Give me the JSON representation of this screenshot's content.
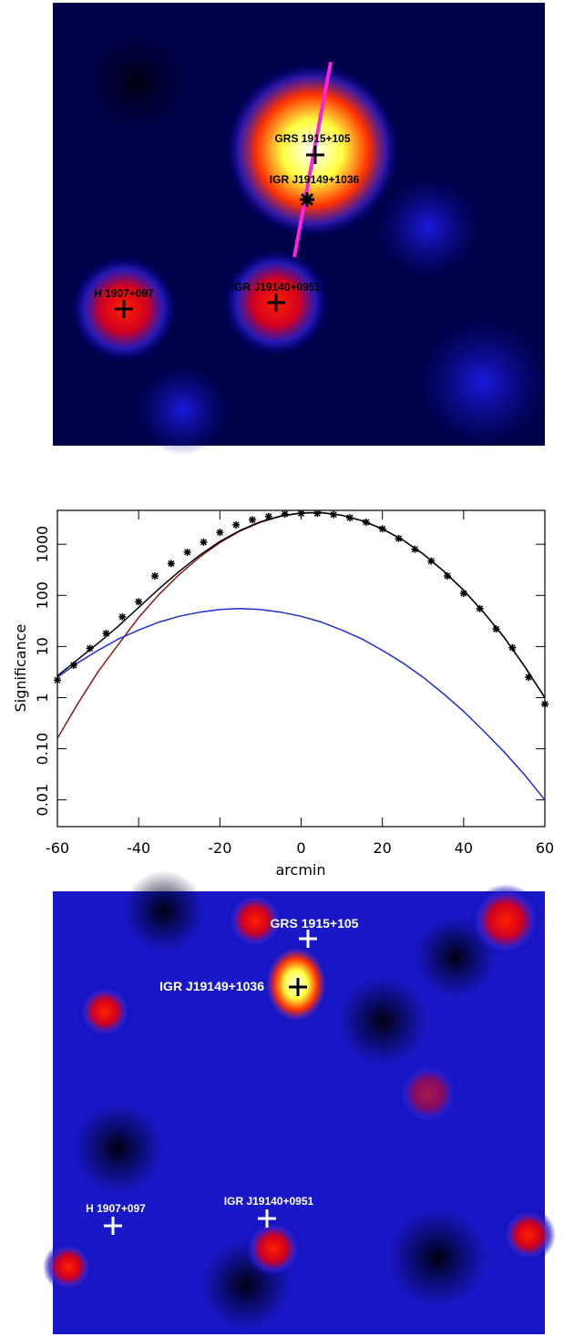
{
  "chart_data": [
    {
      "type": "image",
      "labels": [
        "GRS 1915+105",
        "IGR J19149+1036",
        "H 1907+097",
        "IGR J19140+0951"
      ]
    },
    {
      "type": "line",
      "xlabel": "arcmin",
      "ylabel": "Significance",
      "ylog": true,
      "xlim": [
        -60,
        60
      ],
      "xticks": [
        -60,
        -40,
        -20,
        0,
        20,
        40,
        60
      ],
      "ylim": [
        0.003,
        4600
      ],
      "yticks": [
        0.01,
        {
          "value": 0.1,
          "label": "0.10"
        },
        1,
        10,
        100,
        1000
      ],
      "series": [
        {
          "color": "#8b1a1a",
          "mode": "line",
          "x": [
            -60,
            -55,
            -50,
            -45,
            -40,
            -35,
            -30,
            -25,
            -20,
            -15,
            -10,
            -5,
            0,
            5,
            10,
            15,
            20,
            25,
            30,
            35,
            40,
            45,
            50,
            55,
            60
          ],
          "values": [
            0.16,
            0.76,
            3.2,
            11,
            37,
            104,
            257,
            561,
            1076,
            1820,
            2700,
            3540,
            4070,
            4130,
            3680,
            2880,
            1990,
            1210,
            646,
            303,
            126,
            46,
            15,
            4.1,
            1.0
          ]
        },
        {
          "color": "#1f2fd0",
          "mode": "line",
          "x": [
            -60,
            -55,
            -50,
            -45,
            -40,
            -35,
            -30,
            -25,
            -20,
            -15,
            -10,
            -5,
            0,
            5,
            10,
            15,
            20,
            25,
            30,
            35,
            40,
            45,
            50,
            55,
            60
          ],
          "values": [
            2.5,
            4.8,
            8.4,
            14,
            21,
            30,
            39,
            47,
            53,
            55,
            53,
            47,
            39,
            30,
            21,
            14,
            8.4,
            4.8,
            2.5,
            1.2,
            0.54,
            0.22,
            0.086,
            0.031,
            0.01
          ]
        },
        {
          "color": "#000000",
          "mode": "line",
          "x": [
            -60,
            -55,
            -50,
            -45,
            -40,
            -35,
            -30,
            -25,
            -20,
            -15,
            -10,
            -5,
            0,
            5,
            10,
            15,
            20,
            25,
            30,
            35,
            40,
            45,
            50,
            55,
            60
          ],
          "values": [
            2.66,
            5.56,
            11.6,
            25,
            58,
            134,
            296,
            608,
            1129,
            1875,
            2753,
            3587,
            4109,
            4160,
            3701,
            2894,
            1998,
            1215,
            649,
            304,
            127,
            46,
            15,
            4.1,
            1.0
          ]
        },
        {
          "color": "#000000",
          "mode": "markers",
          "x": [
            -60,
            -56,
            -52,
            -48,
            -44,
            -40,
            -36,
            -32,
            -28,
            -24,
            -20,
            -16,
            -12,
            -8,
            -4,
            0,
            4,
            8,
            12,
            16,
            20,
            24,
            28,
            32,
            36,
            40,
            44,
            48,
            52,
            56,
            60
          ],
          "values": [
            2.2,
            4.3,
            9.2,
            18,
            38,
            75,
            240,
            420,
            700,
            1100,
            1700,
            2400,
            3000,
            3500,
            3900,
            4000,
            4000,
            3800,
            3300,
            2700,
            2000,
            1300,
            800,
            470,
            240,
            110,
            55,
            22,
            9.5,
            2.5,
            0.75
          ]
        }
      ]
    },
    {
      "type": "image",
      "labels": [
        "GRS 1915+105",
        "IGR J19149+1036",
        "H 1907+097",
        "IGR J19140+0951"
      ]
    }
  ]
}
